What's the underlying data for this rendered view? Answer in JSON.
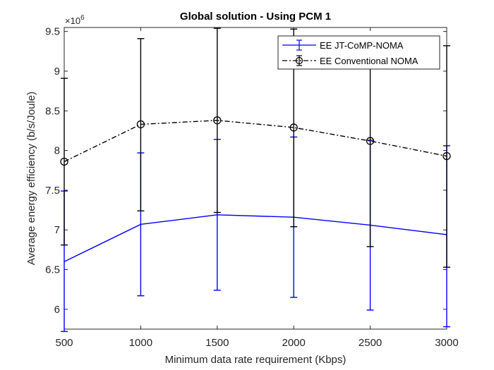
{
  "chart_data": {
    "type": "line",
    "title": "Global solution - Using PCM 1",
    "xlabel": "Minimum data rate requirement (Kbps)",
    "ylabel": "Average energy efficiency (b/s/Joule)",
    "y_multiplier": "×10",
    "y_multiplier_exp": "6",
    "x": [
      500,
      1000,
      1500,
      2000,
      2500,
      3000
    ],
    "xlim": [
      500,
      3000
    ],
    "ylim": [
      5.75,
      9.55
    ],
    "x_ticks": [
      "500",
      "1000",
      "1500",
      "2000",
      "2500",
      "3000"
    ],
    "y_ticks": [
      "6",
      "6.5",
      "7",
      "7.5",
      "8",
      "8.5",
      "9",
      "9.5"
    ],
    "grid": false,
    "legend_position": "top-right",
    "colors": {
      "jt": "#0000ff",
      "conv": "#000000",
      "axis": "#262626"
    },
    "series": [
      {
        "name": "EE JT-CoMP-NOMA",
        "style": "solid",
        "marker": "none",
        "values": [
          6.6,
          7.07,
          7.19,
          7.16,
          7.06,
          6.94
        ],
        "err_low": [
          5.72,
          6.17,
          6.24,
          6.15,
          5.99,
          5.78
        ],
        "err_high": [
          7.49,
          7.97,
          8.14,
          8.17,
          8.13,
          8.06
        ]
      },
      {
        "name": "EE Conventional NOMA",
        "style": "dashdot",
        "marker": "circle",
        "values": [
          7.86,
          8.33,
          8.38,
          8.29,
          8.12,
          7.93
        ],
        "err_low": [
          6.81,
          7.24,
          7.22,
          7.04,
          6.79,
          6.53
        ],
        "err_high": [
          8.91,
          9.41,
          9.54,
          9.53,
          9.44,
          9.32
        ]
      }
    ]
  }
}
